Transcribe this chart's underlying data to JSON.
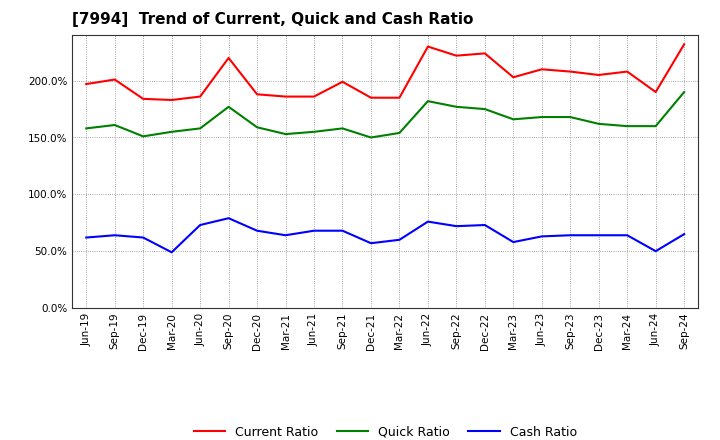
{
  "title": "[7994]  Trend of Current, Quick and Cash Ratio",
  "x_labels": [
    "Jun-19",
    "Sep-19",
    "Dec-19",
    "Mar-20",
    "Jun-20",
    "Sep-20",
    "Dec-20",
    "Mar-21",
    "Jun-21",
    "Sep-21",
    "Dec-21",
    "Mar-22",
    "Jun-22",
    "Sep-22",
    "Dec-22",
    "Mar-23",
    "Jun-23",
    "Sep-23",
    "Dec-23",
    "Mar-24",
    "Jun-24",
    "Sep-24"
  ],
  "current_ratio": [
    197,
    201,
    184,
    183,
    186,
    220,
    188,
    186,
    186,
    199,
    185,
    185,
    230,
    222,
    224,
    203,
    210,
    208,
    205,
    208,
    190,
    232
  ],
  "quick_ratio": [
    158,
    161,
    151,
    155,
    158,
    177,
    159,
    153,
    155,
    158,
    150,
    154,
    182,
    177,
    175,
    166,
    168,
    168,
    162,
    160,
    160,
    190
  ],
  "cash_ratio": [
    62,
    64,
    62,
    49,
    73,
    79,
    68,
    64,
    68,
    68,
    57,
    60,
    76,
    72,
    73,
    58,
    63,
    64,
    64,
    64,
    50,
    65
  ],
  "ylim": [
    0,
    240
  ],
  "yticks": [
    0,
    50,
    100,
    150,
    200
  ],
  "yticklabels": [
    "0.0%",
    "50.0%",
    "100.0%",
    "150.0%",
    "200.0%"
  ],
  "current_color": "#FF0000",
  "quick_color": "#008000",
  "cash_color": "#0000FF",
  "line_width": 1.5,
  "background_color": "#FFFFFF",
  "plot_bg_color": "#FFFFFF",
  "grid_color": "#888888",
  "legend_current": "Current Ratio",
  "legend_quick": "Quick Ratio",
  "legend_cash": "Cash Ratio",
  "title_fontsize": 11,
  "tick_fontsize": 7.5
}
